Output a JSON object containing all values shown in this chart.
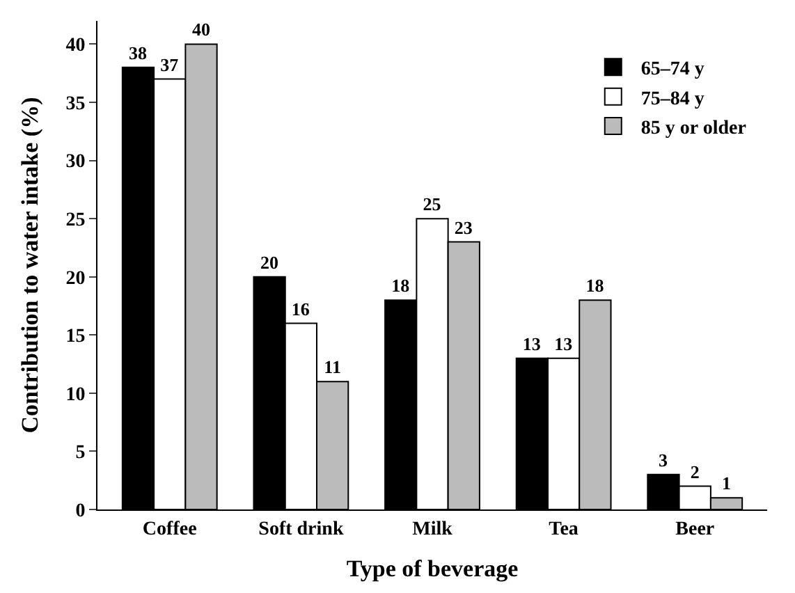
{
  "chart_data": {
    "type": "bar",
    "xlabel": "Type of beverage",
    "ylabel": "Contribution to water intake (%)",
    "categories": [
      "Coffee",
      "Soft drink",
      "Milk",
      "Tea",
      "Beer"
    ],
    "series": [
      {
        "name": "65–74 y",
        "color": "#000000",
        "values": [
          38,
          20,
          18,
          13,
          3
        ]
      },
      {
        "name": "75–84 y",
        "color": "#ffffff",
        "values": [
          37,
          16,
          25,
          13,
          2
        ]
      },
      {
        "name": "85 y or older",
        "color": "#bbbbbb",
        "values": [
          40,
          11,
          23,
          18,
          1
        ]
      }
    ],
    "ylim": [
      0,
      42
    ],
    "yticks": [
      0,
      5,
      10,
      15,
      20,
      25,
      30,
      35,
      40
    ],
    "data_labels": true,
    "legend": "top right"
  }
}
